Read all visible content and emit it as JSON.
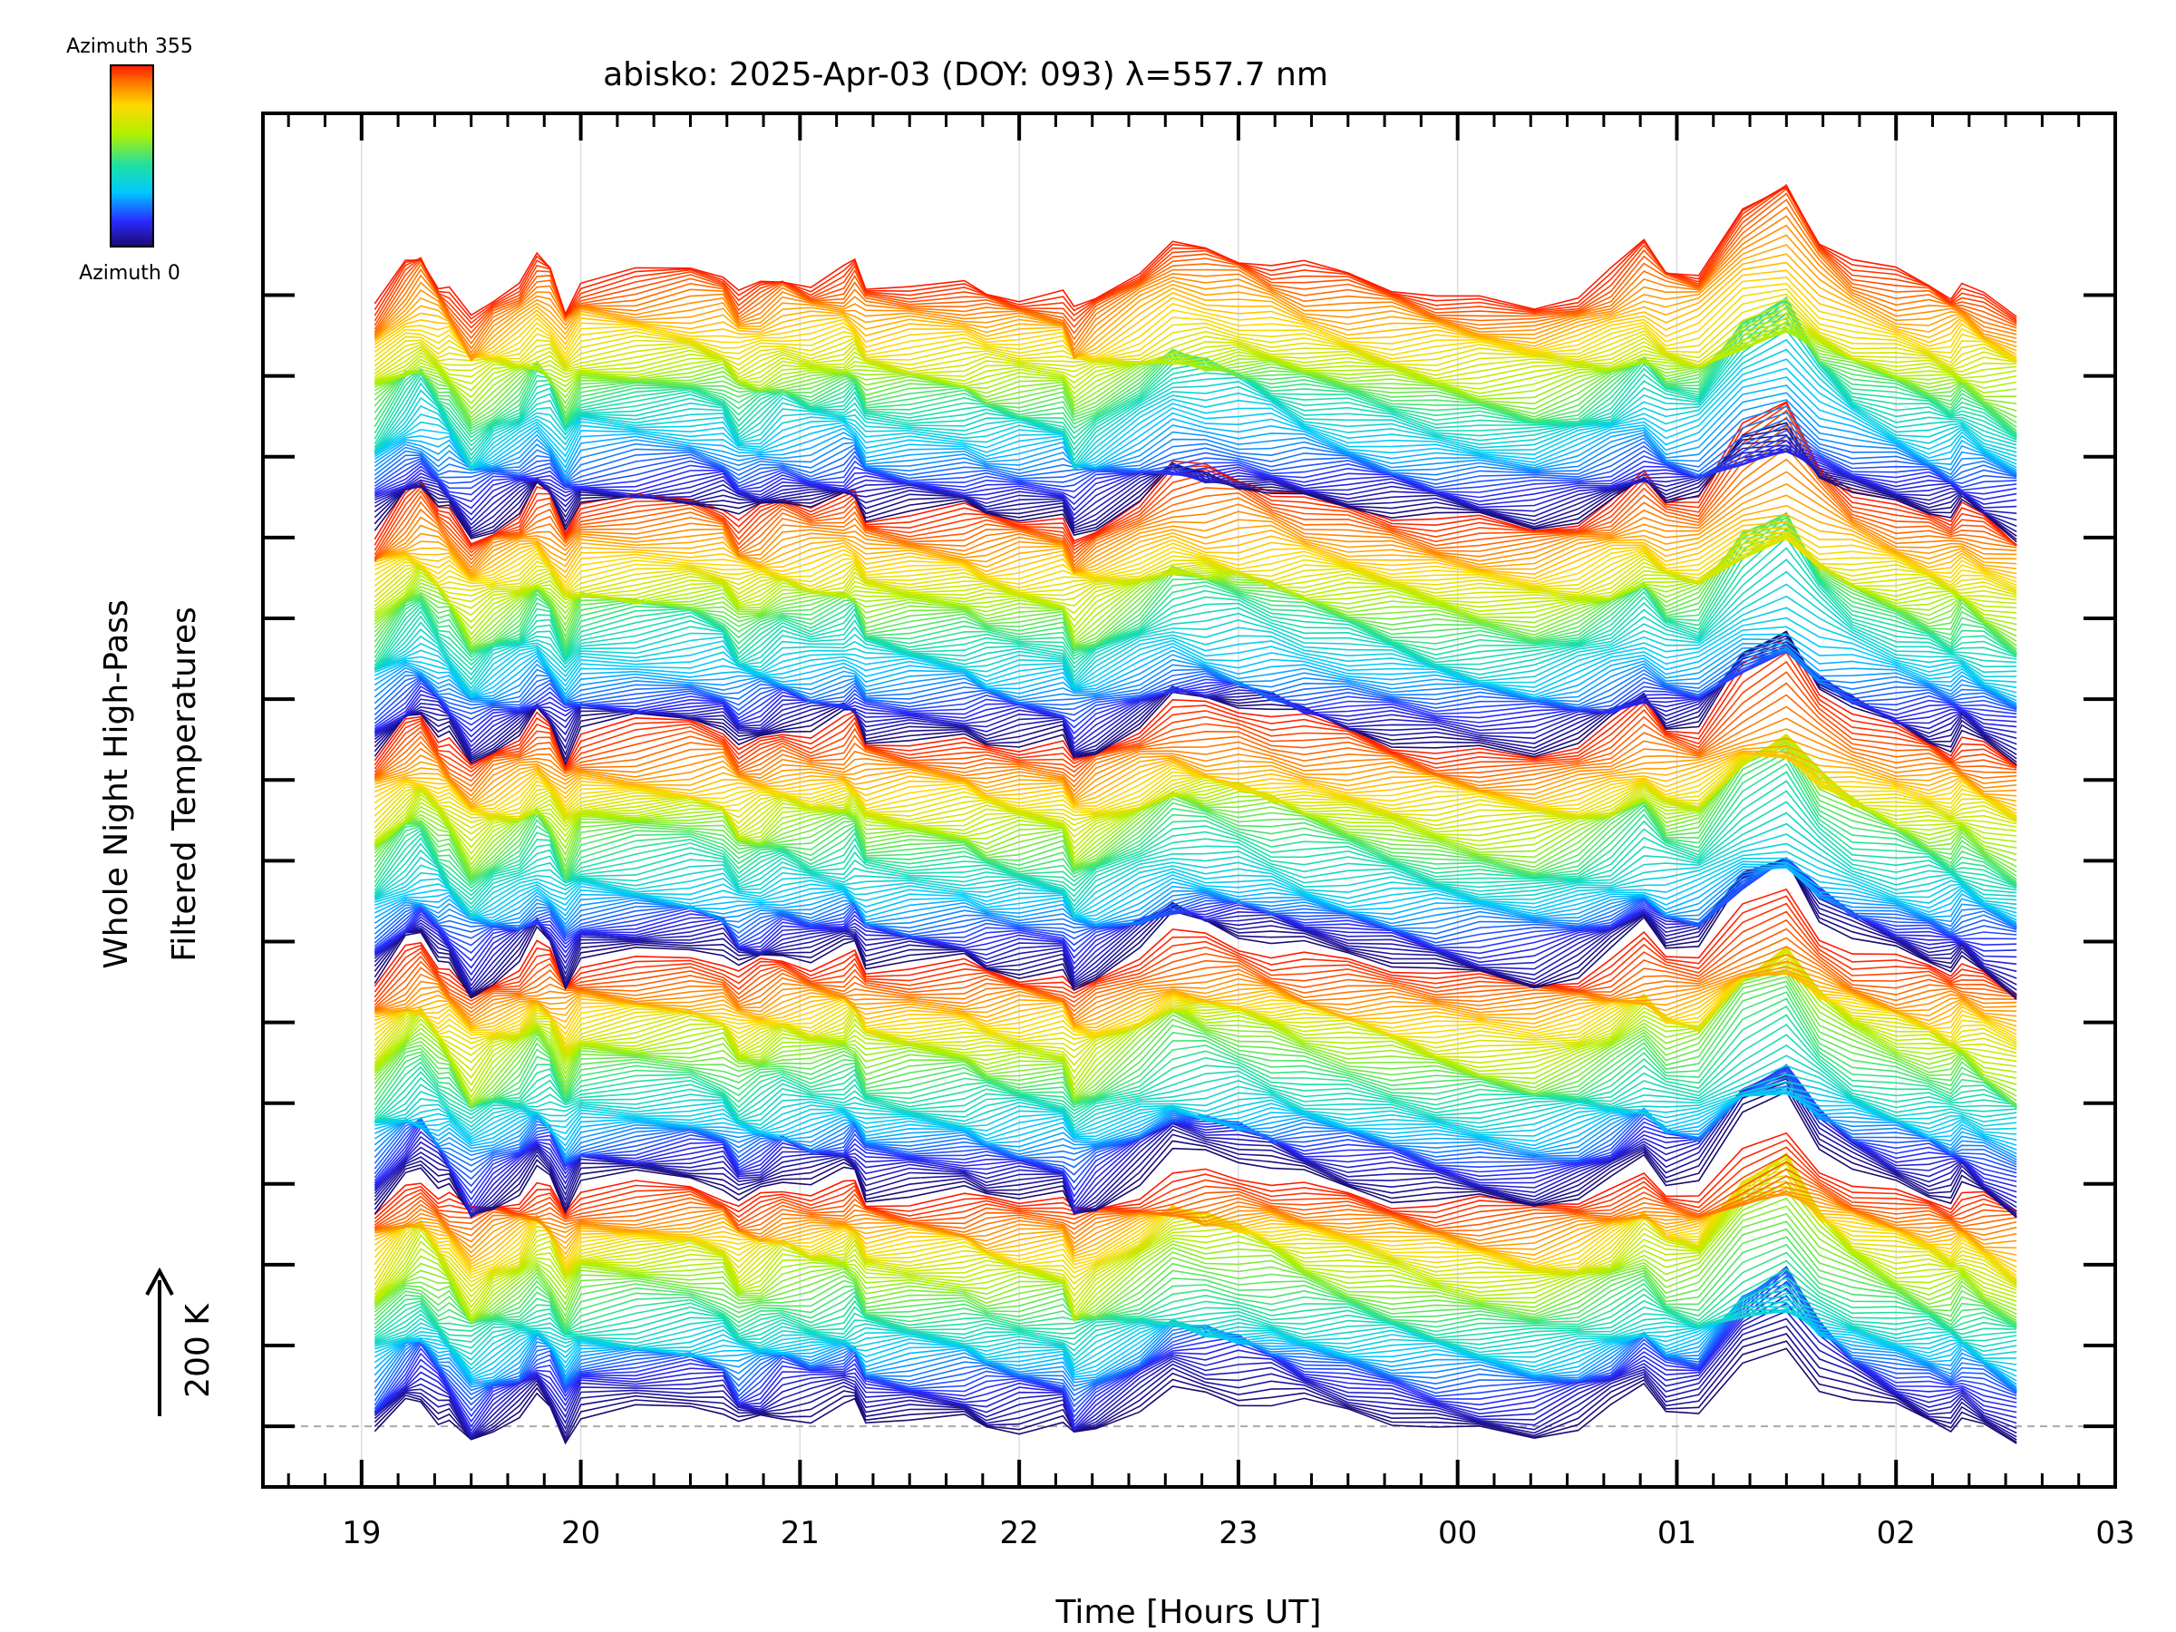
{
  "chart_data": {
    "type": "line",
    "title": "abisko: 2025-Apr-03 (DOY: 093) λ=557.7 nm",
    "xlabel": "Time [Hours UT]",
    "ylabel_line1": "Whole Night High-Pass",
    "ylabel_line2": "Filtered Temperatures",
    "scale_label": "200 K",
    "x_ticks": [
      "19",
      "20",
      "21",
      "22",
      "23",
      "00",
      "01",
      "02",
      "03"
    ],
    "x_tick_hours": [
      19,
      20,
      21,
      22,
      23,
      24,
      25,
      26,
      27
    ],
    "xlim": [
      18.55,
      27.0
    ],
    "colorbar": {
      "top_label": "Azimuth 355",
      "bottom_label": "Azimuth 0",
      "azimuth_range": [
        0,
        355
      ]
    },
    "azimuth_step_deg": 5,
    "n_stacks": 5,
    "series_note": "Stacked high-pass filtered temperature traces; each trace is one azimuth coloured by the colorbar.",
    "x": [
      19.06,
      19.2,
      19.27,
      19.35,
      19.4,
      19.5,
      19.6,
      19.72,
      19.8,
      19.86,
      19.93,
      20.0,
      20.25,
      20.5,
      20.65,
      20.72,
      20.82,
      20.92,
      21.05,
      21.2,
      21.25,
      21.3,
      21.5,
      21.75,
      21.85,
      22.0,
      22.2,
      22.25,
      22.35,
      22.55,
      22.7,
      22.85,
      23.0,
      23.15,
      23.3,
      23.5,
      23.7,
      23.9,
      24.1,
      24.35,
      24.55,
      24.7,
      24.85,
      24.95,
      25.1,
      25.3,
      25.5,
      25.65,
      25.8,
      26.0,
      26.15,
      26.25,
      26.3,
      26.4,
      26.55
    ],
    "base_profile_K": [
      -30,
      60,
      90,
      40,
      20,
      -60,
      -10,
      30,
      80,
      60,
      -20,
      40,
      50,
      60,
      50,
      0,
      20,
      50,
      40,
      60,
      70,
      20,
      20,
      20,
      10,
      10,
      10,
      -50,
      -10,
      60,
      120,
      110,
      100,
      80,
      60,
      40,
      20,
      0,
      -10,
      -20,
      10,
      50,
      110,
      60,
      60,
      200,
      260,
      140,
      80,
      40,
      20,
      10,
      30,
      0,
      -40
    ],
    "ylim_K": [
      -150,
      3250
    ]
  }
}
